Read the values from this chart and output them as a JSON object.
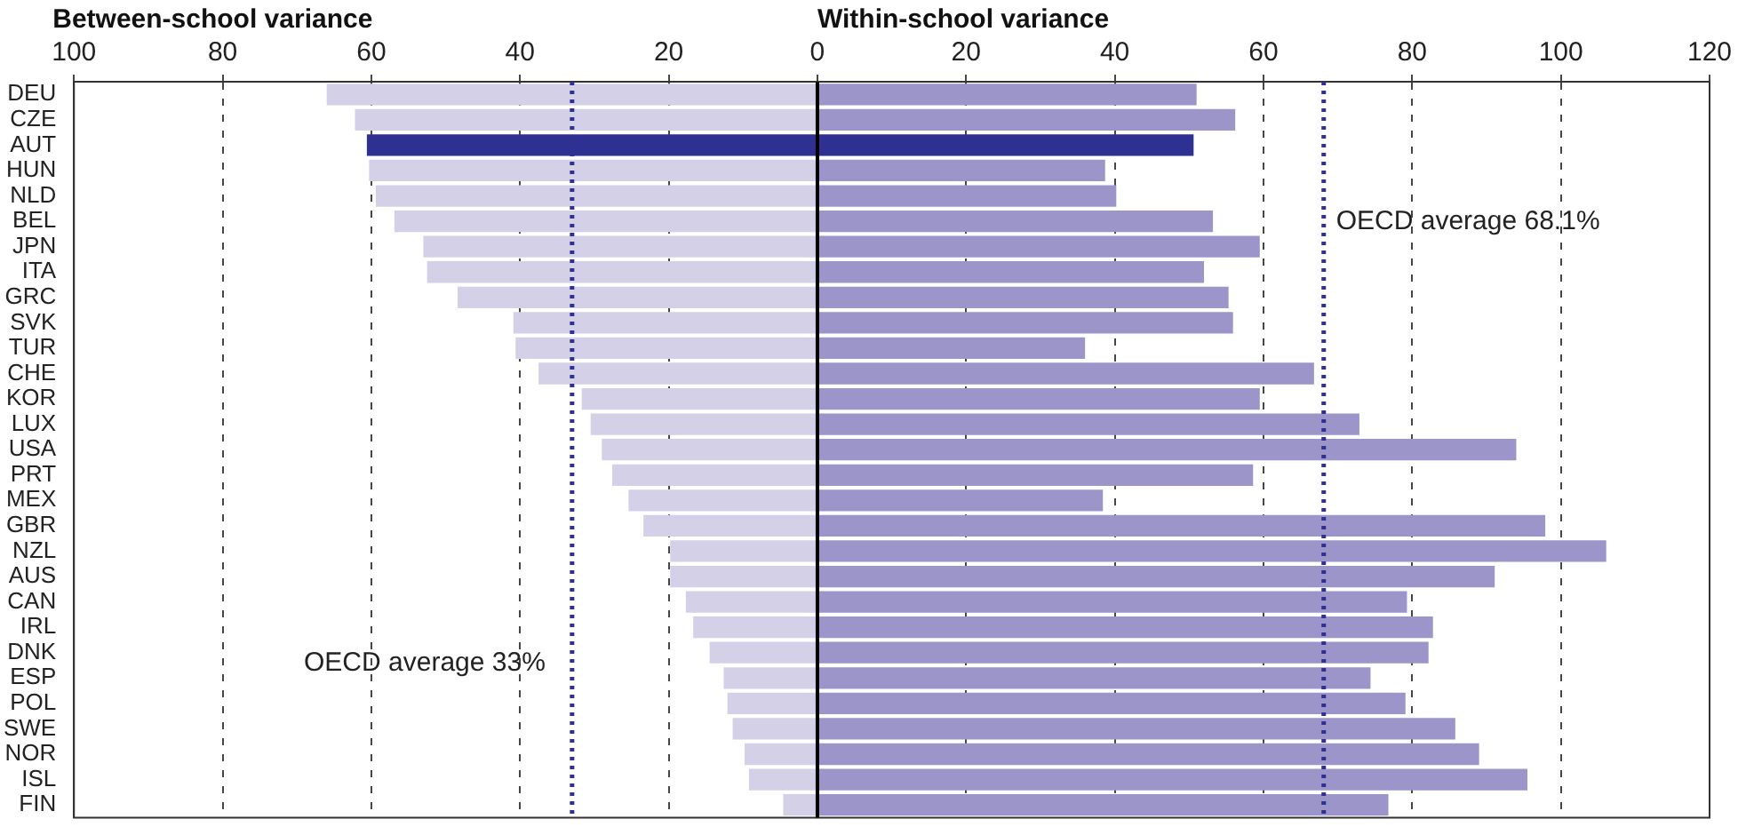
{
  "chart_data": {
    "type": "bar",
    "orientation": "horizontal",
    "stacked": true,
    "categories": [
      "DEU",
      "CZE",
      "AUT",
      "HUN",
      "NLD",
      "BEL",
      "JPN",
      "ITA",
      "GRC",
      "SVK",
      "TUR",
      "CHE",
      "KOR",
      "LUX",
      "USA",
      "PRT",
      "MEX",
      "GBR",
      "NZL",
      "AUS",
      "CAN",
      "IRL",
      "DNK",
      "ESP",
      "POL",
      "SWE",
      "NOR",
      "ISL",
      "FIN"
    ],
    "series": [
      {
        "name": "Between-school variance",
        "colors": [
          "#d4d0e8",
          "#d4d0e8",
          "#2e3191",
          "#d4d0e8",
          "#d4d0e8",
          "#d4d0e8",
          "#d4d0e8",
          "#d4d0e8",
          "#d4d0e8",
          "#d4d0e8",
          "#d4d0e8",
          "#d4d0e8",
          "#d4d0e8",
          "#d4d0e8",
          "#d4d0e8",
          "#d4d0e8",
          "#d4d0e8",
          "#d4d0e8",
          "#d4d0e8",
          "#d4d0e8",
          "#d4d0e8",
          "#d4d0e8",
          "#d4d0e8",
          "#d4d0e8",
          "#d4d0e8",
          "#d4d0e8",
          "#d4d0e8",
          "#d4d0e8",
          "#d4d0e8"
        ],
        "values": [
          -66.0,
          -62.2,
          -60.6,
          -60.3,
          -59.4,
          -56.9,
          -53.0,
          -52.5,
          -48.4,
          -40.9,
          -40.6,
          -37.5,
          -31.7,
          -30.5,
          -29.0,
          -27.6,
          -25.4,
          -23.4,
          -19.8,
          -19.8,
          -17.7,
          -16.7,
          -14.5,
          -12.6,
          -12.1,
          -11.4,
          -9.8,
          -9.2,
          -4.6
        ]
      },
      {
        "name": "Within-school variance",
        "colors": [
          "#9b95c9",
          "#9b95c9",
          "#2e3191",
          "#9b95c9",
          "#9b95c9",
          "#9b95c9",
          "#9b95c9",
          "#9b95c9",
          "#9b95c9",
          "#9b95c9",
          "#9b95c9",
          "#9b95c9",
          "#9b95c9",
          "#9b95c9",
          "#9b95c9",
          "#9b95c9",
          "#9b95c9",
          "#9b95c9",
          "#9b95c9",
          "#9b95c9",
          "#9b95c9",
          "#9b95c9",
          "#9b95c9",
          "#9b95c9",
          "#9b95c9",
          "#9b95c9",
          "#9b95c9",
          "#9b95c9",
          "#9b95c9"
        ],
        "values": [
          51.0,
          56.2,
          50.6,
          38.7,
          40.2,
          53.2,
          59.5,
          52.0,
          55.3,
          55.9,
          36.0,
          66.8,
          59.5,
          72.9,
          94.0,
          58.6,
          38.4,
          97.9,
          106.1,
          91.1,
          79.3,
          82.8,
          82.2,
          74.4,
          79.1,
          85.8,
          89.0,
          95.5,
          76.8
        ]
      }
    ],
    "xlim": [
      -100,
      120
    ],
    "xticks": [
      {
        "value": -100,
        "label": "100"
      },
      {
        "value": -80,
        "label": "80"
      },
      {
        "value": -60,
        "label": "60"
      },
      {
        "value": -40,
        "label": "40"
      },
      {
        "value": -20,
        "label": "20"
      },
      0,
      20,
      40,
      60,
      80,
      100,
      120
    ],
    "grid": "x",
    "legend": false,
    "ref_lines": [
      {
        "axis": "x",
        "value": -33,
        "label": "OECD average 33%",
        "color": "#2e3191",
        "line_style": "dotted"
      },
      {
        "axis": "x",
        "value": 68.1,
        "label": "OECD average 68.1%",
        "color": "#2e3191",
        "line_style": "dotted"
      }
    ]
  }
}
